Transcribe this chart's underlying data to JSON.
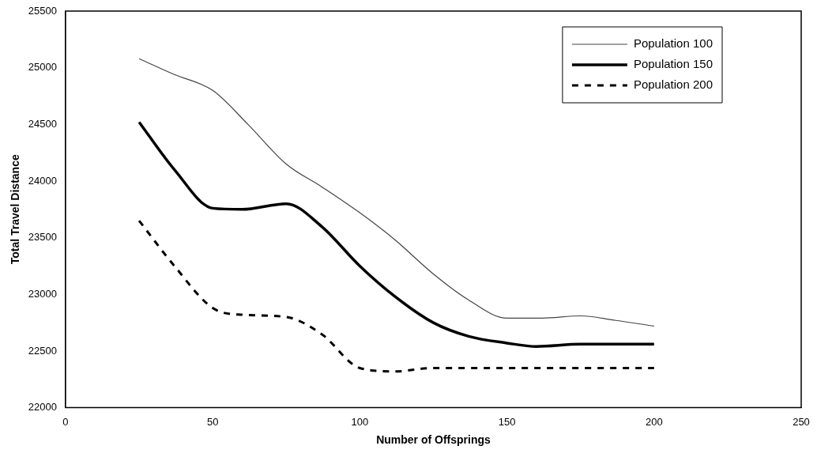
{
  "chart_data": {
    "type": "line",
    "xlabel": "Number of Offsprings",
    "ylabel": "Total Travel Distance",
    "xlim": [
      0,
      250
    ],
    "xticks": [
      0,
      50,
      100,
      150,
      200,
      250
    ],
    "ylim": [
      22000,
      25500
    ],
    "yticks": [
      22000,
      22500,
      23000,
      23500,
      24000,
      24500,
      25000,
      25500
    ],
    "grid": false,
    "legend": "top right",
    "marker": "none",
    "series": [
      {
        "name": "Population 100",
        "color": "#444444",
        "line_style": "solid",
        "x": [
          25,
          37,
          50,
          62,
          75,
          87,
          100,
          112,
          125,
          137,
          150,
          162,
          175,
          187,
          200
        ],
        "values": [
          25080,
          24940,
          24800,
          24500,
          24150,
          23950,
          23720,
          23480,
          23180,
          22950,
          22790,
          22790,
          22810,
          22770,
          22720
        ]
      },
      {
        "name": "Population 150",
        "color": "#000000",
        "line_style": "solid",
        "x": [
          25,
          37,
          50,
          60,
          75,
          87,
          100,
          112,
          125,
          137,
          150,
          160,
          175,
          200
        ],
        "values": [
          24520,
          24100,
          23760,
          23750,
          23800,
          23600,
          23250,
          22980,
          22750,
          22630,
          22570,
          22540,
          22560,
          22560
        ]
      },
      {
        "name": "Population 200",
        "color": "#000000",
        "line_style": "dashed",
        "x": [
          25,
          37,
          50,
          60,
          75,
          87,
          100,
          112,
          125,
          150,
          175,
          200
        ],
        "values": [
          23650,
          23250,
          22880,
          22820,
          22800,
          22650,
          22350,
          22320,
          22350,
          22350,
          22350,
          22350
        ]
      }
    ]
  }
}
